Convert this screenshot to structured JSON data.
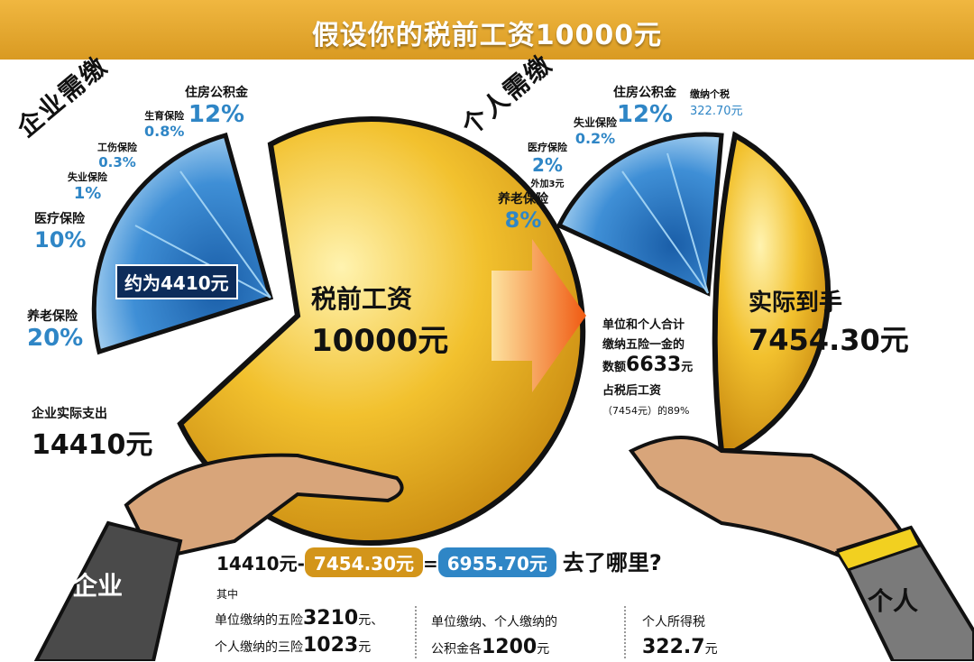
{
  "header": {
    "title": "假设你的税前工资10000元"
  },
  "enterprise": {
    "heading": "企业需缴",
    "items": [
      {
        "name": "住房公积金",
        "pct": "12%"
      },
      {
        "name": "生育保险",
        "pct": "0.8%"
      },
      {
        "name": "工伤保险",
        "pct": "0.3%"
      },
      {
        "name": "失业保险",
        "pct": "1%"
      },
      {
        "name": "医疗保险",
        "pct": "10%"
      },
      {
        "name": "养老保险",
        "pct": "20%"
      }
    ],
    "approx": "约为4410元",
    "actual_label": "企业实际支出",
    "actual_value": "14410元",
    "hand_label": "企业"
  },
  "coin_left": {
    "title": "税前工资",
    "value": "10000元"
  },
  "individual": {
    "heading": "个人需缴",
    "items": [
      {
        "name": "住房公积金",
        "pct": "12%"
      },
      {
        "name": "失业保险",
        "pct": "0.2%"
      },
      {
        "name": "医疗保险",
        "pct": "2%",
        "extra": "外加3元"
      },
      {
        "name": "养老保险",
        "pct": "8%"
      }
    ],
    "tax_label": "缴纳个税",
    "tax_value": "322.70元",
    "hand_label": "个人"
  },
  "coin_right": {
    "title": "实际到手",
    "value": "7454.30元"
  },
  "middle_note": {
    "line1": "单位和个人合计",
    "line2": "缴纳五险一金的",
    "line3_prefix": "数额",
    "line3_value": "6633",
    "line3_suffix": "元",
    "line4": "占税后工资",
    "line5": "（7454元）的89%"
  },
  "equation": {
    "a": "14410元",
    "minus": "-",
    "b": "7454.30元",
    "eq": "=",
    "c": "6955.70元",
    "tail": "去了哪里?"
  },
  "breakdown": {
    "intro": "其中",
    "col1_line1_prefix": "单位缴纳的五险",
    "col1_line1_value": "3210",
    "col1_line1_suffix": "元、",
    "col1_line2_prefix": "个人缴纳的三险",
    "col1_line2_value": "1023",
    "col1_line2_suffix": "元",
    "col2_line1": "单位缴纳、个人缴纳的",
    "col2_line2_prefix": "公积金各",
    "col2_line2_value": "1200",
    "col2_line2_suffix": "元",
    "col3_line1": "个人所得税",
    "col3_line2_value": "322.7",
    "col3_line2_suffix": "元"
  },
  "colors": {
    "blue": "#2f86c6",
    "gold": "#e3a51a",
    "banner": "#e5a62c",
    "orange": "#f07a20"
  }
}
